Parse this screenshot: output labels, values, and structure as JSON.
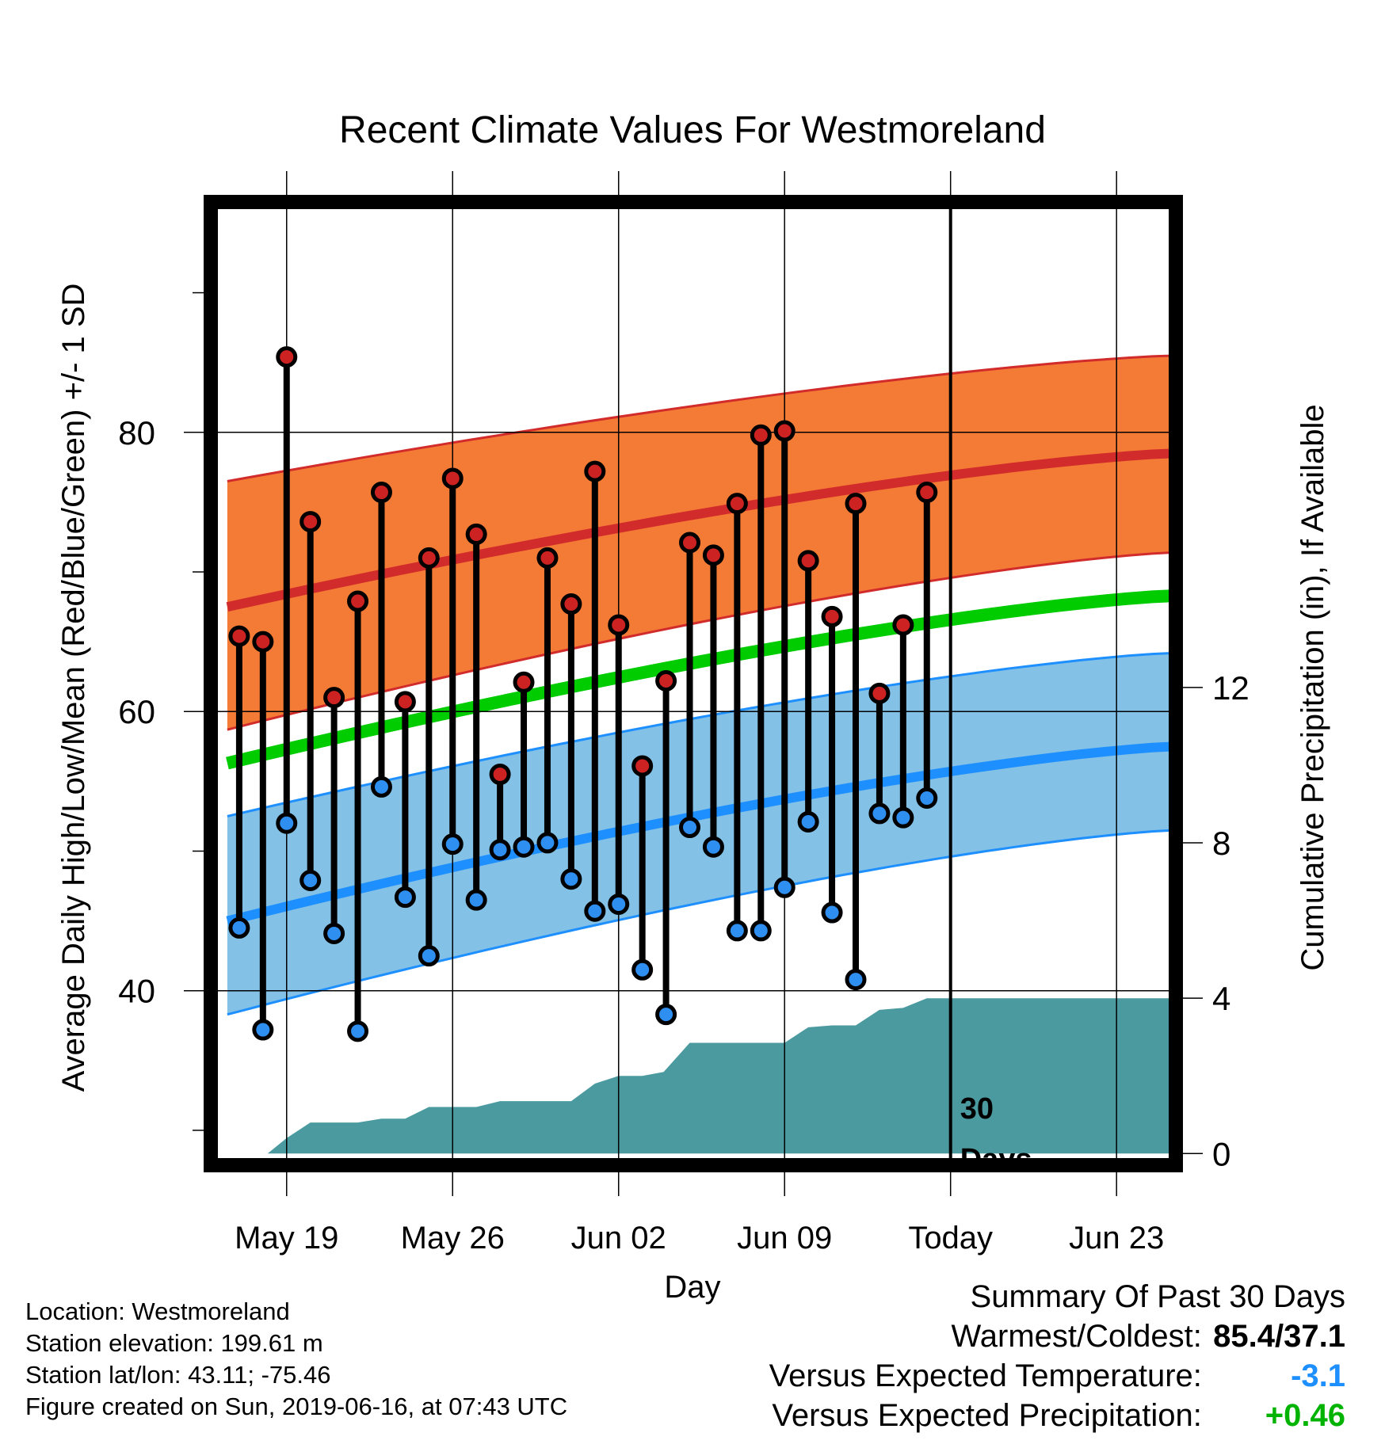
{
  "chart_data": {
    "type": "line",
    "title": "Recent Climate Values For Westmoreland",
    "xlabel": "Day",
    "ylabel": "Average Daily High/Low/Mean (Red/Blue/Green) +/- 1 SD",
    "y2label": "Cumulative Precipitation (in), If Available",
    "x_tick_labels": [
      "May 19",
      "May 26",
      "Jun 02",
      "Jun 09",
      "Today",
      "Jun 23"
    ],
    "x_tick_days": [
      19,
      26,
      33,
      40,
      47,
      54
    ],
    "x_range_days": [
      15.8,
      56.5
    ],
    "y_range": [
      27.5,
      96.5
    ],
    "y_ticks": [
      40,
      60,
      80
    ],
    "y2_range": [
      -0.3,
      24.5
    ],
    "y2_ticks": [
      0,
      4,
      8,
      12
    ],
    "y2_tick_labels": [
      "0",
      "4",
      "8",
      "12"
    ],
    "today_day": 47,
    "today_annotation": [
      "30",
      "Days"
    ],
    "grid": true,
    "colors": {
      "high_band": "#f47b35",
      "high_line": "#d22b2b",
      "low_band": "#83c1e6",
      "low_line": "#1e8fff",
      "mean_line": "#00cc00",
      "precip_fill": "#4a9aa0",
      "high_marker": "#cc2222",
      "low_marker": "#2e8ff0"
    },
    "normal_high": {
      "days": [
        16.5,
        56.5
      ],
      "mean": [
        67.5,
        78.5
      ],
      "upper": [
        76.5,
        85.5
      ],
      "lower": [
        58.7,
        71.4
      ]
    },
    "normal_low": {
      "days": [
        16.5,
        56.5
      ],
      "mean": [
        45.0,
        57.5
      ],
      "upper": [
        52.5,
        64.2
      ],
      "lower": [
        38.3,
        51.5
      ]
    },
    "normal_mean": {
      "days": [
        16.5,
        56.5
      ],
      "values": [
        56.3,
        68.3
      ]
    },
    "observed": {
      "days": [
        17,
        18,
        19,
        20,
        21,
        22,
        23,
        24,
        25,
        26,
        27,
        28,
        29,
        30,
        31,
        32,
        33,
        34,
        35,
        36,
        37,
        38,
        39,
        40,
        41,
        42,
        43,
        44,
        45,
        46
      ],
      "high": [
        65.4,
        65.0,
        85.4,
        73.6,
        61.0,
        67.9,
        75.7,
        60.7,
        71.0,
        76.7,
        72.7,
        55.5,
        62.1,
        71.0,
        67.7,
        77.2,
        66.2,
        56.1,
        62.2,
        72.1,
        71.2,
        74.9,
        79.8,
        80.1,
        70.8,
        66.8,
        74.9,
        61.3,
        66.2,
        75.7
      ],
      "low": [
        44.5,
        37.2,
        52.0,
        47.9,
        44.1,
        37.1,
        54.6,
        46.7,
        42.5,
        50.5,
        46.5,
        50.1,
        50.3,
        50.6,
        48.0,
        45.7,
        46.2,
        41.5,
        38.3,
        51.7,
        50.3,
        44.3,
        44.3,
        47.4,
        52.1,
        45.6,
        40.8,
        52.7,
        52.4,
        53.8
      ]
    },
    "precip_cumulative": {
      "days": [
        15.8,
        18.2,
        19.0,
        20.0,
        22.0,
        23.0,
        24.0,
        25.0,
        26.0,
        27.0,
        28.0,
        29.0,
        30.0,
        31.0,
        32.0,
        33.0,
        34.0,
        34.9,
        36.0,
        37.0,
        38.0,
        39.0,
        40.0,
        41.0,
        42.0,
        43.0,
        44.0,
        45.0,
        46.0,
        47.0,
        56.5
      ],
      "values": [
        0.0,
        0.0,
        0.4,
        0.8,
        0.8,
        0.9,
        0.9,
        1.2,
        1.2,
        1.2,
        1.35,
        1.35,
        1.35,
        1.35,
        1.8,
        2.0,
        2.0,
        2.1,
        2.85,
        2.85,
        2.85,
        2.85,
        2.85,
        3.25,
        3.3,
        3.3,
        3.7,
        3.75,
        4.0,
        4.0,
        4.0
      ]
    }
  },
  "info": {
    "location": "Location: Westmoreland",
    "elevation": "Station elevation: 199.61 m",
    "latlon": "Station lat/lon: 43.11; -75.46",
    "created": "Figure created on Sun, 2019-06-16, at 07:43 UTC"
  },
  "summary": {
    "title": "Summary Of Past 30 Days",
    "warmest_label": "Warmest/Coldest:",
    "warmest_value": "85.4/37.1",
    "temp_label": "Versus Expected Temperature:",
    "temp_value": "-3.1",
    "temp_color": "#1e8fff",
    "precip_label": "Versus Expected Precipitation:",
    "precip_value": "+0.46",
    "precip_color": "#00b300"
  }
}
